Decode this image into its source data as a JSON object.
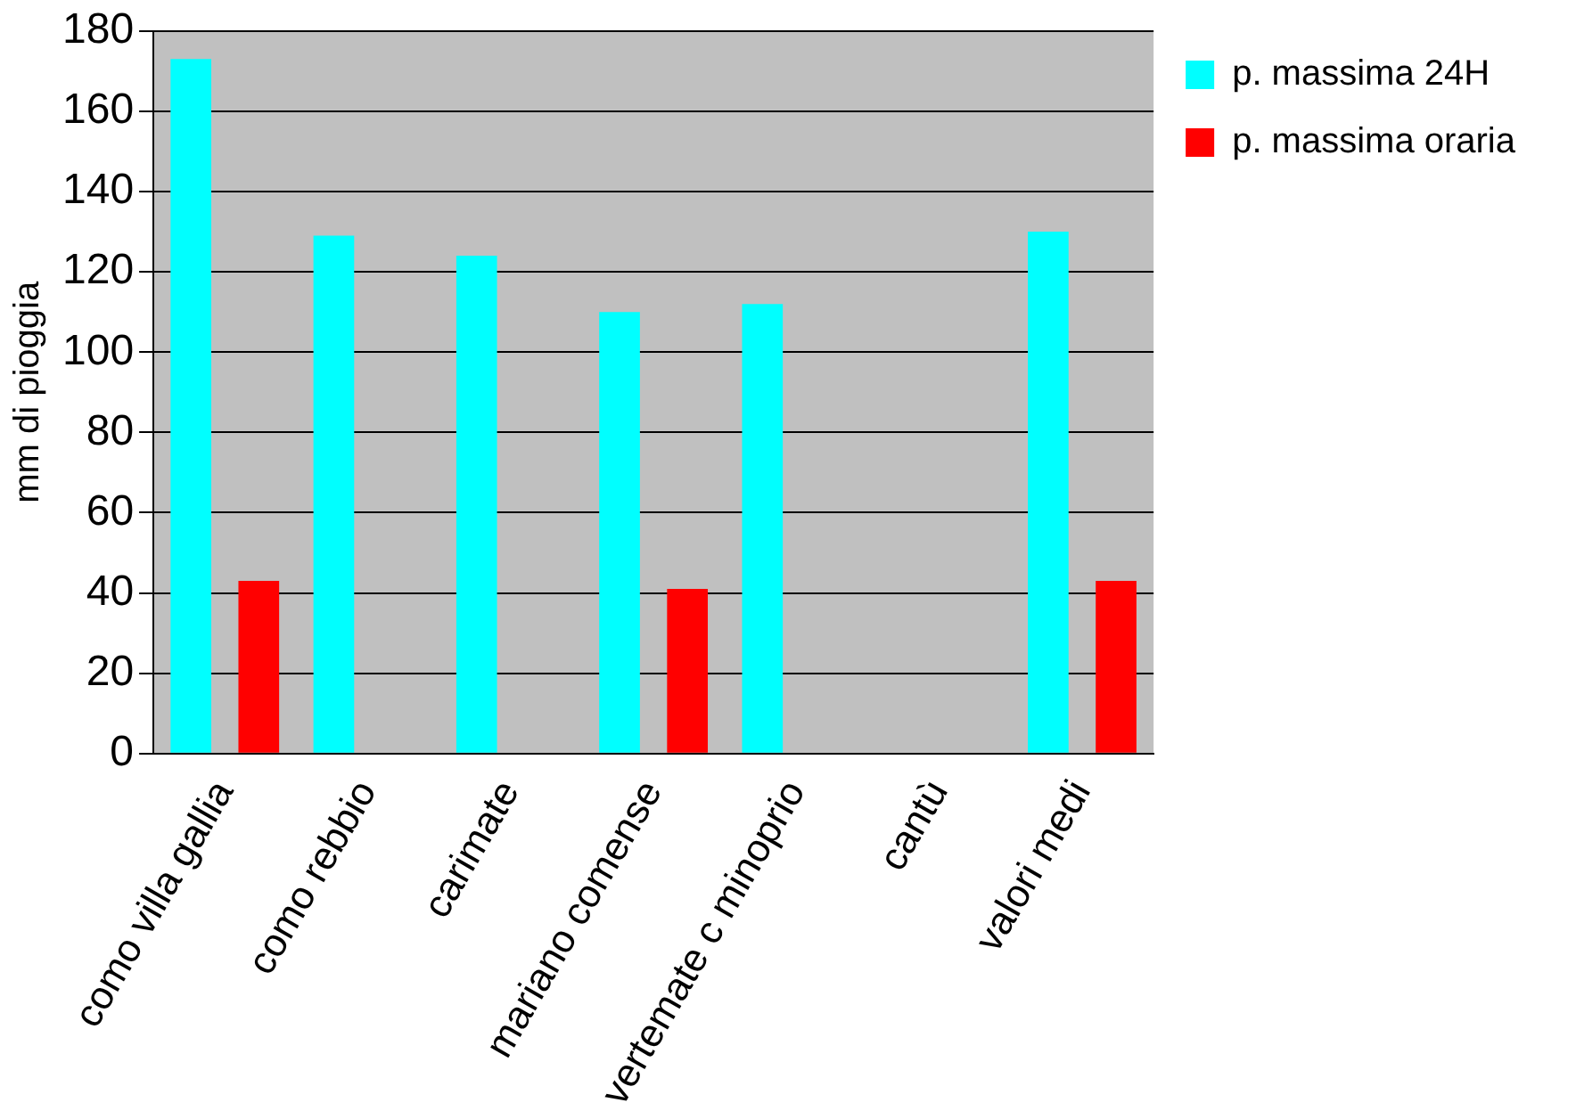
{
  "chart_data": {
    "type": "bar",
    "ylabel": "mm di pioggia",
    "categories": [
      "como villa gallia",
      "como rebbio",
      "carimate",
      "mariano comense",
      "vertemate c minoprio",
      "cantù",
      "valori medi"
    ],
    "series": [
      {
        "name": "p. massima 24H",
        "color": "#00ffff",
        "values": [
          173,
          129,
          124,
          110,
          112,
          null,
          130
        ]
      },
      {
        "name": "p. massima oraria",
        "color": "#ff0000",
        "values": [
          43,
          null,
          null,
          41,
          null,
          null,
          43
        ]
      }
    ],
    "ylim": [
      0,
      180
    ],
    "yticks": [
      0,
      20,
      40,
      60,
      80,
      100,
      120,
      140,
      160,
      180
    ],
    "grid": "y",
    "legend": "right"
  }
}
